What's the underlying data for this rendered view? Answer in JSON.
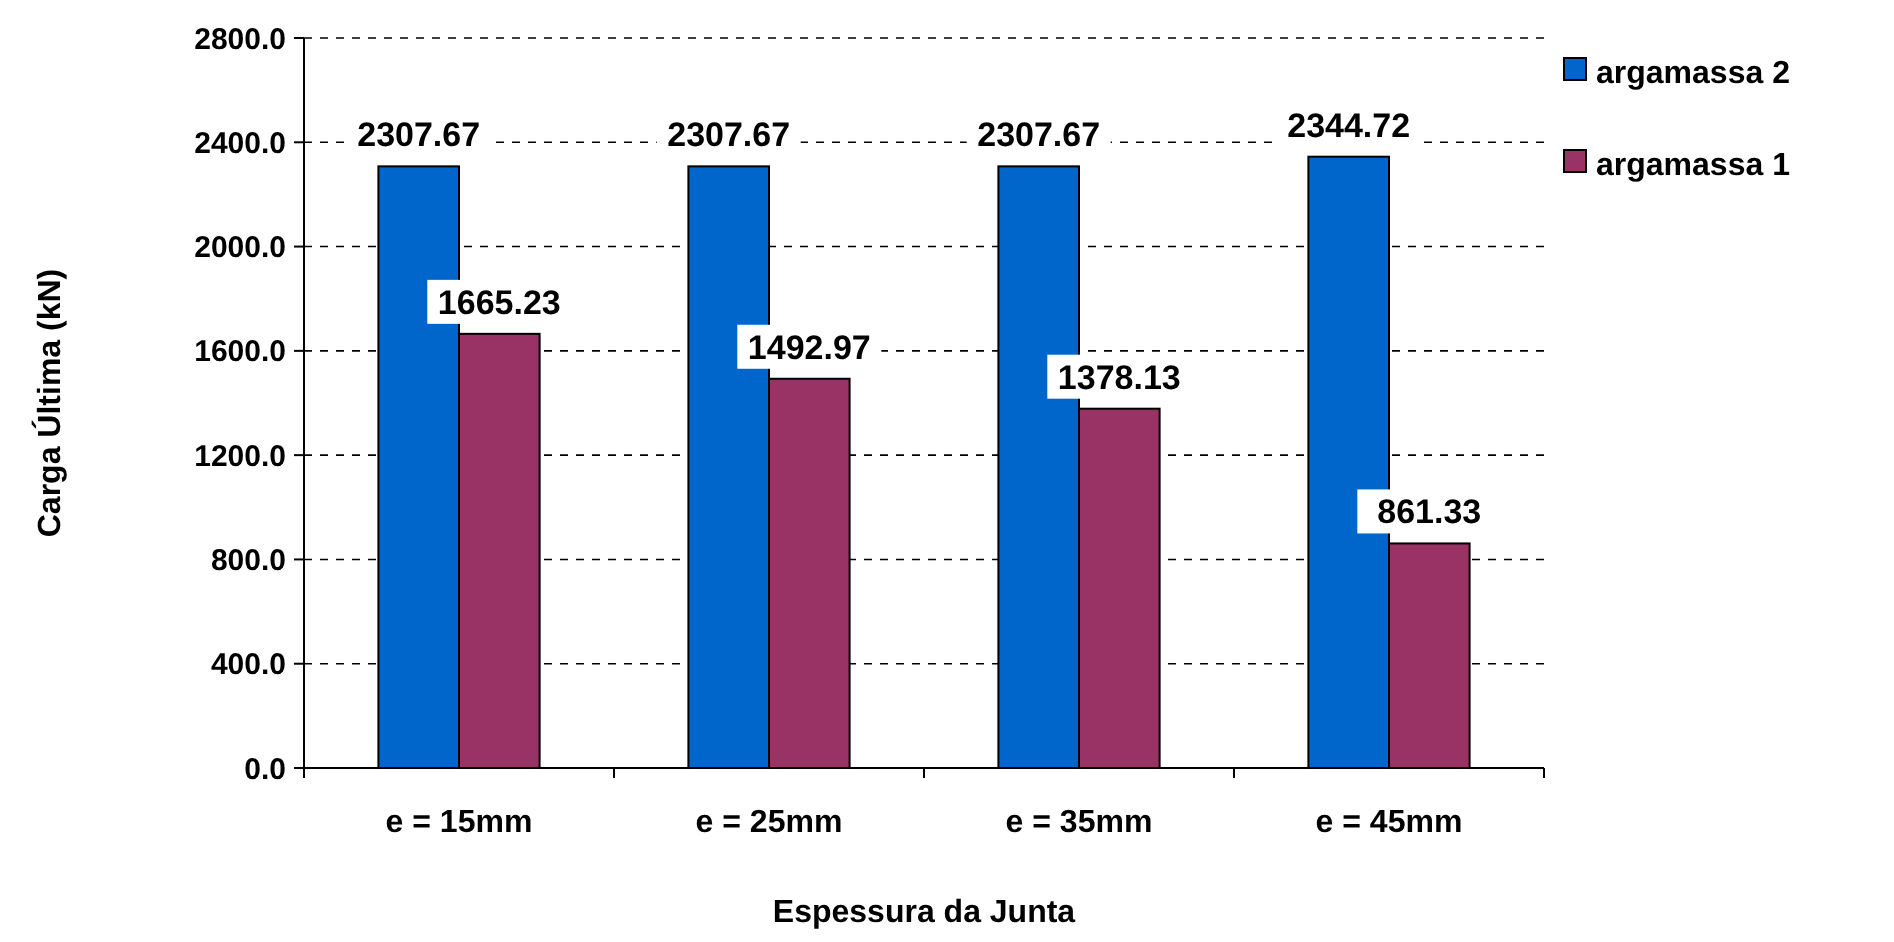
{
  "chart_data": {
    "type": "bar",
    "xlabel": "Espessura da Junta",
    "ylabel": "Carga Última (kN)",
    "categories": [
      "e = 15mm",
      "e = 25mm",
      "e = 35mm",
      "e = 45mm"
    ],
    "series": [
      {
        "name": "argamassa 2",
        "color": "#0066cc",
        "values": [
          2307.67,
          2307.67,
          2307.67,
          2344.72
        ]
      },
      {
        "name": "argamassa 1",
        "color": "#993366",
        "values": [
          1665.23,
          1492.97,
          1378.13,
          861.33
        ]
      }
    ],
    "ylim": [
      0,
      2800
    ],
    "yticks": [
      {
        "value": 0,
        "label": "0.0"
      },
      {
        "value": 400,
        "label": "400.0"
      },
      {
        "value": 800,
        "label": "800.0"
      },
      {
        "value": 1200,
        "label": "1200.0"
      },
      {
        "value": 1600,
        "label": "1600.0"
      },
      {
        "value": 2000,
        "label": "2000.0"
      },
      {
        "value": 2400,
        "label": "2400.0"
      },
      {
        "value": 2800,
        "label": "2800.0"
      }
    ],
    "grid": "y",
    "legend": "top right",
    "data_labels": true
  }
}
